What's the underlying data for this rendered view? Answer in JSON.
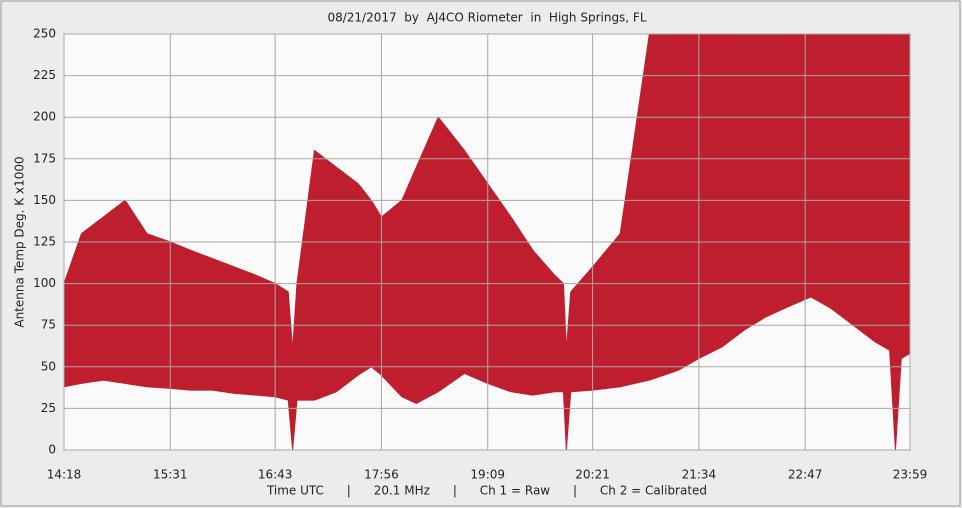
{
  "chart_data": {
    "type": "area",
    "title": "08/21/2017  by  AJ4CO Riometer  in  High Springs, FL",
    "x_label": "Time UTC      |      20.1 MHz      |      Ch 1 = Raw      |      Ch 2 = Calibrated",
    "y_label": "Antenna Temp Deg. K x1000",
    "x": [
      "14:18",
      "14:30",
      "14:45",
      "15:00",
      "15:15",
      "15:31",
      "15:45",
      "16:00",
      "16:15",
      "16:30",
      "16:43",
      "16:52",
      "16:55",
      "16:58",
      "17:10",
      "17:25",
      "17:40",
      "17:49",
      "17:56",
      "18:10",
      "18:20",
      "18:35",
      "18:53",
      "19:09",
      "19:25",
      "19:40",
      "19:55",
      "20:01",
      "20:03",
      "20:06",
      "20:21",
      "20:40",
      "21:00",
      "21:20",
      "21:34",
      "21:50",
      "22:05",
      "22:20",
      "22:35",
      "22:51",
      "23:05",
      "23:20",
      "23:35",
      "23:45",
      "23:49",
      "23:53",
      "23:59"
    ],
    "series": [
      {
        "color": "#be1e2d",
        "values": [
          38,
          40,
          42,
          40,
          38,
          37,
          36,
          36,
          34,
          33,
          32,
          30,
          0,
          30,
          30,
          35,
          45,
          50,
          45,
          32,
          28,
          35,
          46,
          40,
          35,
          33,
          35,
          35,
          0,
          35,
          36,
          38,
          42,
          48,
          55,
          62,
          72,
          80,
          86,
          92,
          85,
          75,
          65,
          60,
          0,
          55,
          58
        ]
      },
      {
        "color": "#be1e2d",
        "values": [
          100,
          130,
          140,
          150,
          130,
          125,
          120,
          115,
          110,
          105,
          100,
          95,
          60,
          100,
          180,
          170,
          160,
          150,
          140,
          150,
          170,
          200,
          180,
          160,
          140,
          120,
          105,
          100,
          60,
          95,
          110,
          130,
          250,
          250,
          250,
          250,
          250,
          250,
          250,
          250,
          250,
          250,
          250,
          250,
          250,
          250,
          250
        ]
      }
    ],
    "xlim": [
      "14:18",
      "23:59"
    ],
    "xticks": [
      "14:18",
      "15:31",
      "16:43",
      "17:56",
      "19:09",
      "20:21",
      "21:34",
      "22:47",
      "23:59"
    ],
    "ylim": [
      0,
      250
    ],
    "yticks": [
      0,
      25,
      50,
      75,
      100,
      125,
      150,
      175,
      200,
      225,
      250
    ],
    "grid": true
  }
}
